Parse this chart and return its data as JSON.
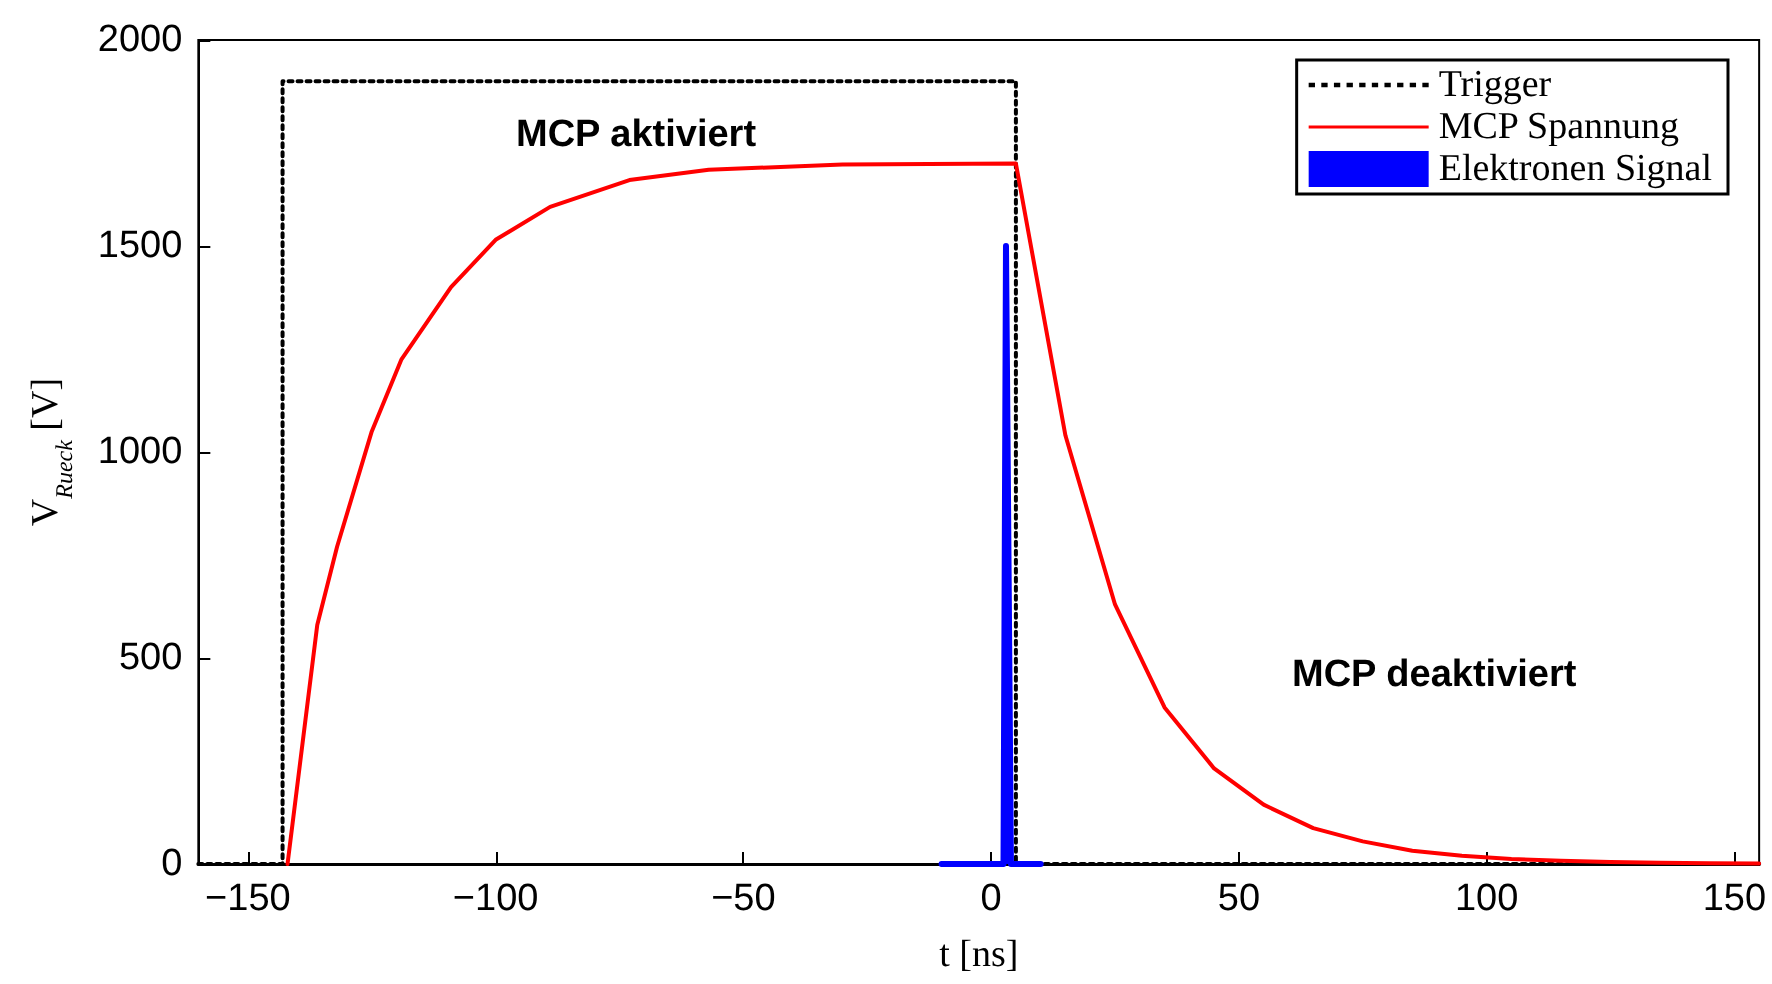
{
  "chart_data": {
    "type": "line",
    "xlabel": "t [ns]",
    "ylabel": "V$_{Rueck}$ [V]",
    "xlim": [
      -160,
      155
    ],
    "xticks": [
      -150,
      -100,
      -50,
      0,
      50,
      100,
      150
    ],
    "ylim": [
      0,
      2000
    ],
    "yticks": [
      0,
      500,
      1000,
      1500,
      2000
    ],
    "grid": false,
    "legend": "top right",
    "marker": "none",
    "annotations": [
      "MCP aktiviert",
      "MCP deaktiviert"
    ],
    "series": [
      {
        "name": "Trigger",
        "type": "step",
        "color": "#000000",
        "line_style": "dotted",
        "x": [
          -160,
          -143,
          -143,
          5,
          5,
          155
        ],
        "values": [
          0,
          0,
          1900,
          1900,
          0,
          0
        ]
      },
      {
        "name": "MCP Spannung",
        "color": "#ff0000",
        "line_style": "solid",
        "x": [
          -142,
          -136,
          -132,
          -125,
          -119,
          -109,
          -100,
          -89,
          -73,
          -57,
          -30,
          5,
          15,
          25,
          35,
          45,
          55,
          65,
          75,
          85,
          95,
          105,
          115,
          125,
          135,
          145,
          155
        ],
        "values": [
          0,
          580,
          770,
          1050,
          1225,
          1400,
          1515,
          1595,
          1660,
          1685,
          1698,
          1700,
          1040,
          630,
          380,
          232,
          144,
          87,
          55,
          32,
          20,
          12,
          8,
          5,
          3,
          2,
          1
        ]
      },
      {
        "name": "Elektronen Signal",
        "type": "area",
        "color": "#0000ff",
        "line_style": "solid",
        "x": [
          -10,
          2.5,
          3,
          4,
          10
        ],
        "values": [
          0,
          0,
          1500,
          0,
          0
        ]
      }
    ]
  }
}
